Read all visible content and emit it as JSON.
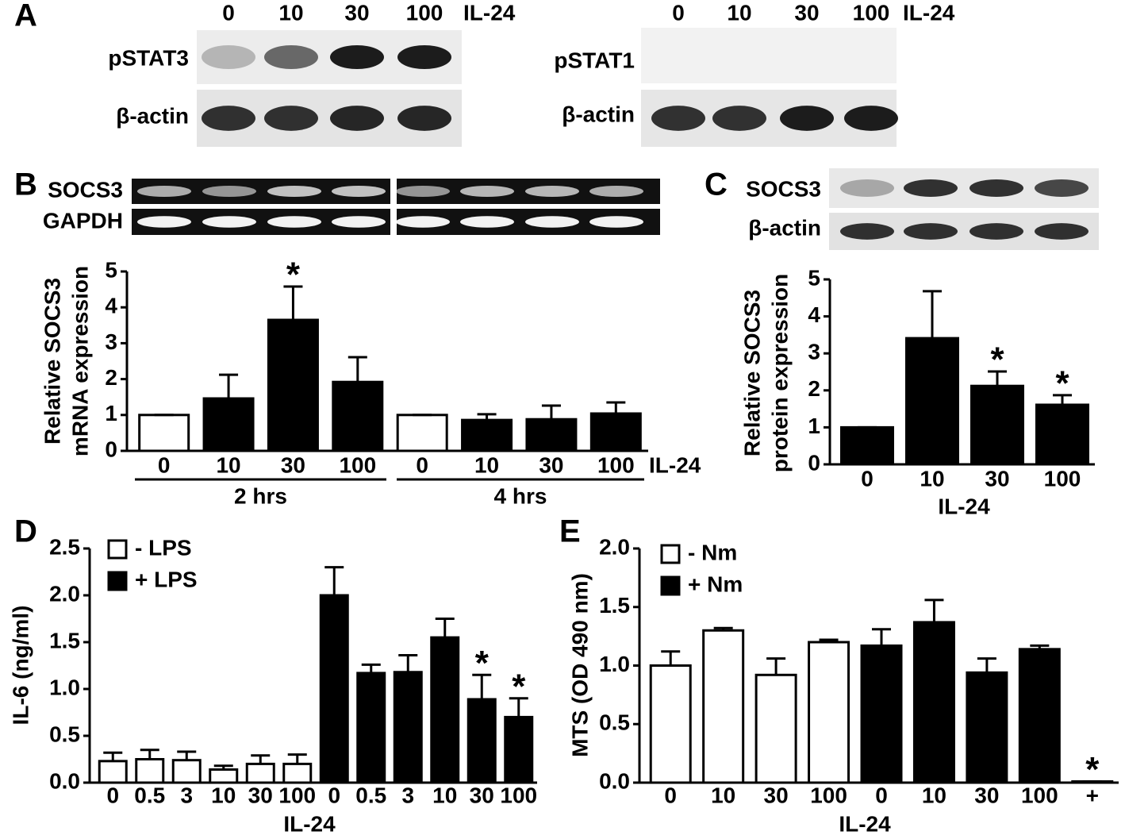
{
  "blots": {
    "panel_a": {
      "letter": "A",
      "left": {
        "lanes": [
          "0",
          "10",
          "30",
          "100"
        ],
        "treatment": "IL-24",
        "rows": [
          "pSTAT3",
          "β-actin"
        ]
      },
      "right": {
        "lanes": [
          "0",
          "10",
          "30",
          "100"
        ],
        "treatment": "IL-24",
        "rows": [
          "pSTAT1",
          "β-actin"
        ]
      }
    },
    "panel_b_gel": {
      "rows": [
        "SOCS3",
        "GAPDH"
      ]
    },
    "panel_c_blot": {
      "rows": [
        "SOCS3",
        "β-actin"
      ]
    }
  },
  "chart_data": [
    {
      "type": "bar",
      "panel": "B",
      "ylabel": [
        "Relative SOCS3",
        "mRNA expression"
      ],
      "categories": [
        "0",
        "10",
        "30",
        "100",
        "0",
        "10",
        "30",
        "100"
      ],
      "xlabel": "IL-24",
      "group_labels": [
        "2 hrs",
        "4 hrs"
      ],
      "values": [
        1,
        1.46,
        3.65,
        1.92,
        1,
        0.86,
        0.88,
        1.04
      ],
      "errors": [
        0,
        0.66,
        0.93,
        0.69,
        0,
        0.16,
        0.38,
        0.31
      ],
      "colors": [
        "#ffffff",
        "#000000",
        "#000000",
        "#000000",
        "#ffffff",
        "#000000",
        "#000000",
        "#000000"
      ],
      "significance": [
        null,
        null,
        "*",
        null,
        null,
        null,
        null,
        null
      ],
      "ylim": [
        0,
        5
      ],
      "yticks": [
        0,
        1,
        2,
        3,
        4,
        5
      ]
    },
    {
      "type": "bar",
      "panel": "C",
      "ylabel": [
        "Relative SOCS3",
        "protein expression"
      ],
      "categories": [
        "0",
        "10",
        "30",
        "100"
      ],
      "xlabel": "IL-24",
      "values": [
        1,
        3.41,
        2.12,
        1.61
      ],
      "errors": [
        0,
        1.27,
        0.39,
        0.26
      ],
      "colors": [
        "#000000",
        "#000000",
        "#000000",
        "#000000"
      ],
      "significance": [
        null,
        null,
        "*",
        "*"
      ],
      "ylim": [
        0,
        5
      ],
      "yticks": [
        0,
        1,
        2,
        3,
        4,
        5
      ]
    },
    {
      "type": "bar",
      "panel": "D",
      "ylabel": [
        "IL-6 (ng/ml)"
      ],
      "xlabel": "IL-24",
      "categories": [
        "0",
        "0.5",
        "3",
        "10",
        "30",
        "100",
        "0",
        "0.5",
        "3",
        "10",
        "30",
        "100"
      ],
      "series": [
        {
          "name": "- LPS",
          "color": "#ffffff",
          "values": [
            0.23,
            0.25,
            0.24,
            0.14,
            0.2,
            0.2,
            null,
            null,
            null,
            null,
            null,
            null
          ],
          "errors": [
            0.09,
            0.1,
            0.09,
            0.04,
            0.09,
            0.1,
            null,
            null,
            null,
            null,
            null,
            null
          ]
        },
        {
          "name": "+ LPS",
          "color": "#000000",
          "values": [
            null,
            null,
            null,
            null,
            null,
            null,
            2.0,
            1.17,
            1.18,
            1.55,
            0.89,
            0.7
          ],
          "errors": [
            null,
            null,
            null,
            null,
            null,
            null,
            0.3,
            0.09,
            0.18,
            0.2,
            0.26,
            0.2
          ]
        }
      ],
      "significance": [
        null,
        null,
        null,
        null,
        null,
        null,
        null,
        null,
        null,
        null,
        "*",
        "*"
      ],
      "ylim": [
        0,
        2.5
      ],
      "yticks": [
        {
          "value": 0,
          "label": "0.0"
        },
        0.5,
        {
          "value": 1,
          "label": "1.0"
        },
        1.5,
        {
          "value": 2,
          "label": "2.0"
        },
        2.5
      ]
    },
    {
      "type": "bar",
      "panel": "E",
      "ylabel": [
        "MTS (OD 490 nm)"
      ],
      "xlabel": "IL-24",
      "categories": [
        "0",
        "10",
        "30",
        "100",
        "0",
        "10",
        "30",
        "100",
        "+"
      ],
      "series": [
        {
          "name": "- Nm",
          "color": "#ffffff",
          "values": [
            1.0,
            1.3,
            0.92,
            1.2,
            null,
            null,
            null,
            null,
            null
          ],
          "errors": [
            0.12,
            0.02,
            0.14,
            0.02,
            null,
            null,
            null,
            null,
            null
          ]
        },
        {
          "name": "+ Nm",
          "color": "#000000",
          "values": [
            null,
            null,
            null,
            null,
            1.17,
            1.37,
            0.94,
            1.14,
            0.01
          ],
          "errors": [
            null,
            null,
            null,
            null,
            0.14,
            0.19,
            0.12,
            0.03,
            0
          ]
        }
      ],
      "significance": [
        null,
        null,
        null,
        null,
        null,
        null,
        null,
        null,
        "*"
      ],
      "ylim": [
        0,
        2
      ],
      "yticks": [
        {
          "value": 0,
          "label": "0.0"
        },
        0.5,
        {
          "value": 1,
          "label": "1.0"
        },
        1.5,
        {
          "value": 2,
          "label": "2.0"
        }
      ]
    }
  ]
}
